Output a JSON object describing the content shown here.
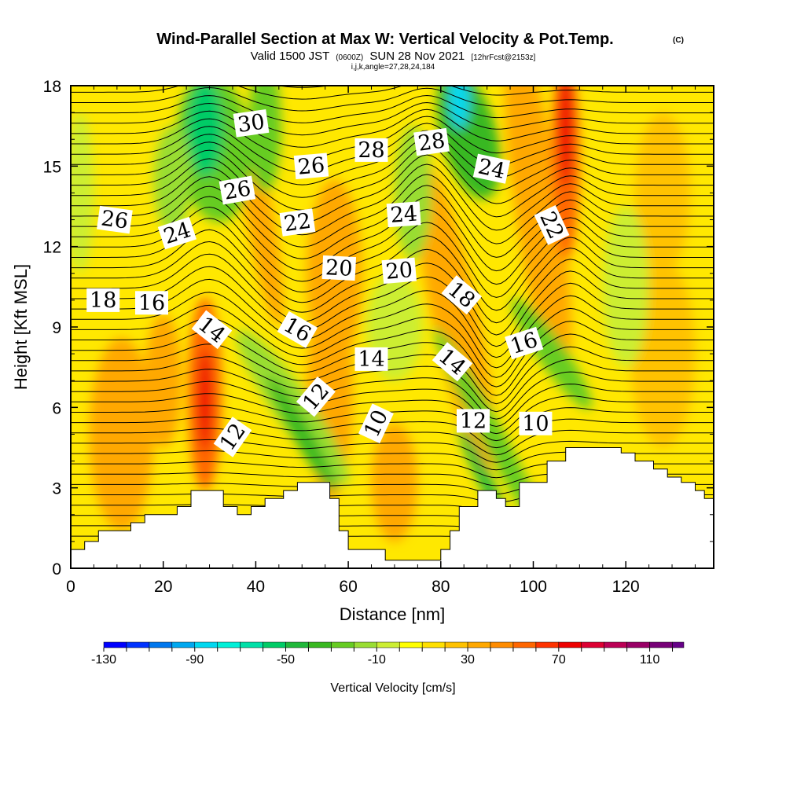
{
  "title": {
    "main": "Wind-Parallel Section at Max W: Vertical Velocity & Pot.Temp.",
    "copyright": "(C)",
    "valid_prefix": "Valid 1500 JST",
    "valid_utc": "(0600Z)",
    "valid_date": "SUN 28 Nov 2021",
    "forecast": "[12hrFcst@2153z]",
    "indices": "i,j,k,angle=27,28,24,184"
  },
  "chart_data": {
    "type": "heatmap",
    "xlabel": "Distance [nm]",
    "ylabel": "Height [Kft MSL]",
    "xlim": [
      0,
      139
    ],
    "ylim": [
      0,
      18
    ],
    "x_ticks": [
      "0",
      "20",
      "40",
      "60",
      "80",
      "100",
      "120"
    ],
    "y_ticks": [
      "0",
      "3",
      "6",
      "9",
      "12",
      "15",
      "18"
    ],
    "colorbar": {
      "title": "Vertical Velocity [cm/s]",
      "labels": [
        "-130",
        "-90",
        "-50",
        "-10",
        "30",
        "70",
        "110"
      ],
      "bins": [
        -130,
        -120,
        -110,
        -100,
        -90,
        -80,
        -70,
        -60,
        -50,
        -40,
        -30,
        -20,
        -10,
        0,
        10,
        20,
        30,
        40,
        50,
        60,
        70,
        80,
        90,
        100,
        110,
        120
      ],
      "colors": [
        "#0000ff",
        "#0033ff",
        "#0077ee",
        "#00a8f0",
        "#00d8f0",
        "#00f0d8",
        "#00e0a8",
        "#00cc66",
        "#20b83a",
        "#38b820",
        "#66cc22",
        "#99dd33",
        "#ccee33",
        "#ffff00",
        "#ffe000",
        "#ffc200",
        "#ffa800",
        "#ff8c00",
        "#ff6600",
        "#ff3300",
        "#ee0000",
        "#dd0033",
        "#bb0055",
        "#990066",
        "#770077",
        "#660088"
      ]
    },
    "w_features": [
      {
        "x": 29,
        "z": 6.3,
        "w": 75
      },
      {
        "x": 107,
        "z": 17,
        "w": 80
      },
      {
        "x": 28,
        "z": 16,
        "w": -70
      },
      {
        "x": 84,
        "z": 17.5,
        "w": -100
      },
      {
        "x": 49,
        "z": 4,
        "w": -50
      },
      {
        "x": 90,
        "z": 4,
        "w": -50
      },
      {
        "x": 103,
        "z": 8,
        "w": -35
      }
    ],
    "terrain": [
      [
        0,
        0.7
      ],
      [
        3,
        0.7
      ],
      [
        3,
        1.0
      ],
      [
        6,
        1.0
      ],
      [
        6,
        1.4
      ],
      [
        13,
        1.4
      ],
      [
        13,
        1.7
      ],
      [
        16,
        1.7
      ],
      [
        16,
        2.0
      ],
      [
        23,
        2.0
      ],
      [
        23,
        2.3
      ],
      [
        26,
        2.3
      ],
      [
        26,
        2.9
      ],
      [
        33,
        2.9
      ],
      [
        33,
        2.3
      ],
      [
        36,
        2.3
      ],
      [
        36,
        2.0
      ],
      [
        39,
        2.0
      ],
      [
        39,
        2.3
      ],
      [
        42,
        2.3
      ],
      [
        42,
        2.6
      ],
      [
        46,
        2.6
      ],
      [
        46,
        2.9
      ],
      [
        49,
        2.9
      ],
      [
        49,
        3.2
      ],
      [
        56,
        3.2
      ],
      [
        56,
        2.6
      ],
      [
        58,
        2.6
      ],
      [
        58,
        1.4
      ],
      [
        60,
        1.4
      ],
      [
        60,
        0.7
      ],
      [
        68,
        0.7
      ],
      [
        68,
        0.3
      ],
      [
        80,
        0.3
      ],
      [
        80,
        0.7
      ],
      [
        82,
        0.7
      ],
      [
        82,
        1.4
      ],
      [
        84,
        1.4
      ],
      [
        84,
        2.3
      ],
      [
        88,
        2.3
      ],
      [
        88,
        2.9
      ],
      [
        92,
        2.9
      ],
      [
        92,
        2.6
      ],
      [
        94,
        2.6
      ],
      [
        94,
        2.3
      ],
      [
        97,
        2.3
      ],
      [
        97,
        3.2
      ],
      [
        103,
        3.2
      ],
      [
        103,
        4.0
      ],
      [
        107,
        4.0
      ],
      [
        107,
        4.5
      ],
      [
        119,
        4.5
      ],
      [
        119,
        4.3
      ],
      [
        122,
        4.3
      ],
      [
        122,
        4.0
      ],
      [
        126,
        4.0
      ],
      [
        126,
        3.7
      ],
      [
        129,
        3.7
      ],
      [
        129,
        3.4
      ],
      [
        132,
        3.4
      ],
      [
        132,
        3.2
      ],
      [
        135,
        3.2
      ],
      [
        135,
        2.9
      ],
      [
        137,
        2.9
      ],
      [
        137,
        2.6
      ],
      [
        139,
        2.6
      ]
    ],
    "isentropes": {
      "levels": [
        10,
        12,
        14,
        16,
        18,
        20,
        22,
        24,
        26,
        28,
        30
      ],
      "labels": [
        {
          "text": "30",
          "x": 39,
          "z": 16.6,
          "angle": -8
        },
        {
          "text": "28",
          "x": 65,
          "z": 15.6,
          "angle": 0
        },
        {
          "text": "28",
          "x": 78,
          "z": 15.9,
          "angle": -8
        },
        {
          "text": "26",
          "x": 52,
          "z": 15.0,
          "angle": -5
        },
        {
          "text": "24",
          "x": 91,
          "z": 14.9,
          "angle": 12
        },
        {
          "text": "26",
          "x": 36,
          "z": 14.1,
          "angle": -10
        },
        {
          "text": "26",
          "x": 9.5,
          "z": 13.0,
          "angle": 8
        },
        {
          "text": "24",
          "x": 72,
          "z": 13.2,
          "angle": -4
        },
        {
          "text": "22",
          "x": 49,
          "z": 12.9,
          "angle": -8
        },
        {
          "text": "22",
          "x": 104,
          "z": 12.8,
          "angle": 65
        },
        {
          "text": "24",
          "x": 23,
          "z": 12.5,
          "angle": -18
        },
        {
          "text": "20",
          "x": 58,
          "z": 11.2,
          "angle": 3
        },
        {
          "text": "20",
          "x": 71,
          "z": 11.1,
          "angle": -5
        },
        {
          "text": "18",
          "x": 84.5,
          "z": 10.2,
          "angle": 40
        },
        {
          "text": "18",
          "x": 7,
          "z": 10.0,
          "angle": 0
        },
        {
          "text": "16",
          "x": 17.5,
          "z": 9.9,
          "angle": 0
        },
        {
          "text": "14",
          "x": 30.5,
          "z": 8.9,
          "angle": 38
        },
        {
          "text": "16",
          "x": 49,
          "z": 8.9,
          "angle": 30
        },
        {
          "text": "16",
          "x": 98,
          "z": 8.4,
          "angle": -18
        },
        {
          "text": "14",
          "x": 65,
          "z": 7.8,
          "angle": 0
        },
        {
          "text": "14",
          "x": 82.5,
          "z": 7.7,
          "angle": 40
        },
        {
          "text": "12",
          "x": 53,
          "z": 6.4,
          "angle": -50
        },
        {
          "text": "10",
          "x": 66,
          "z": 5.4,
          "angle": -65
        },
        {
          "text": "12",
          "x": 87,
          "z": 5.5,
          "angle": 0
        },
        {
          "text": "10",
          "x": 100.5,
          "z": 5.4,
          "angle": 0
        },
        {
          "text": "12",
          "x": 35,
          "z": 4.9,
          "angle": -55
        }
      ]
    }
  }
}
